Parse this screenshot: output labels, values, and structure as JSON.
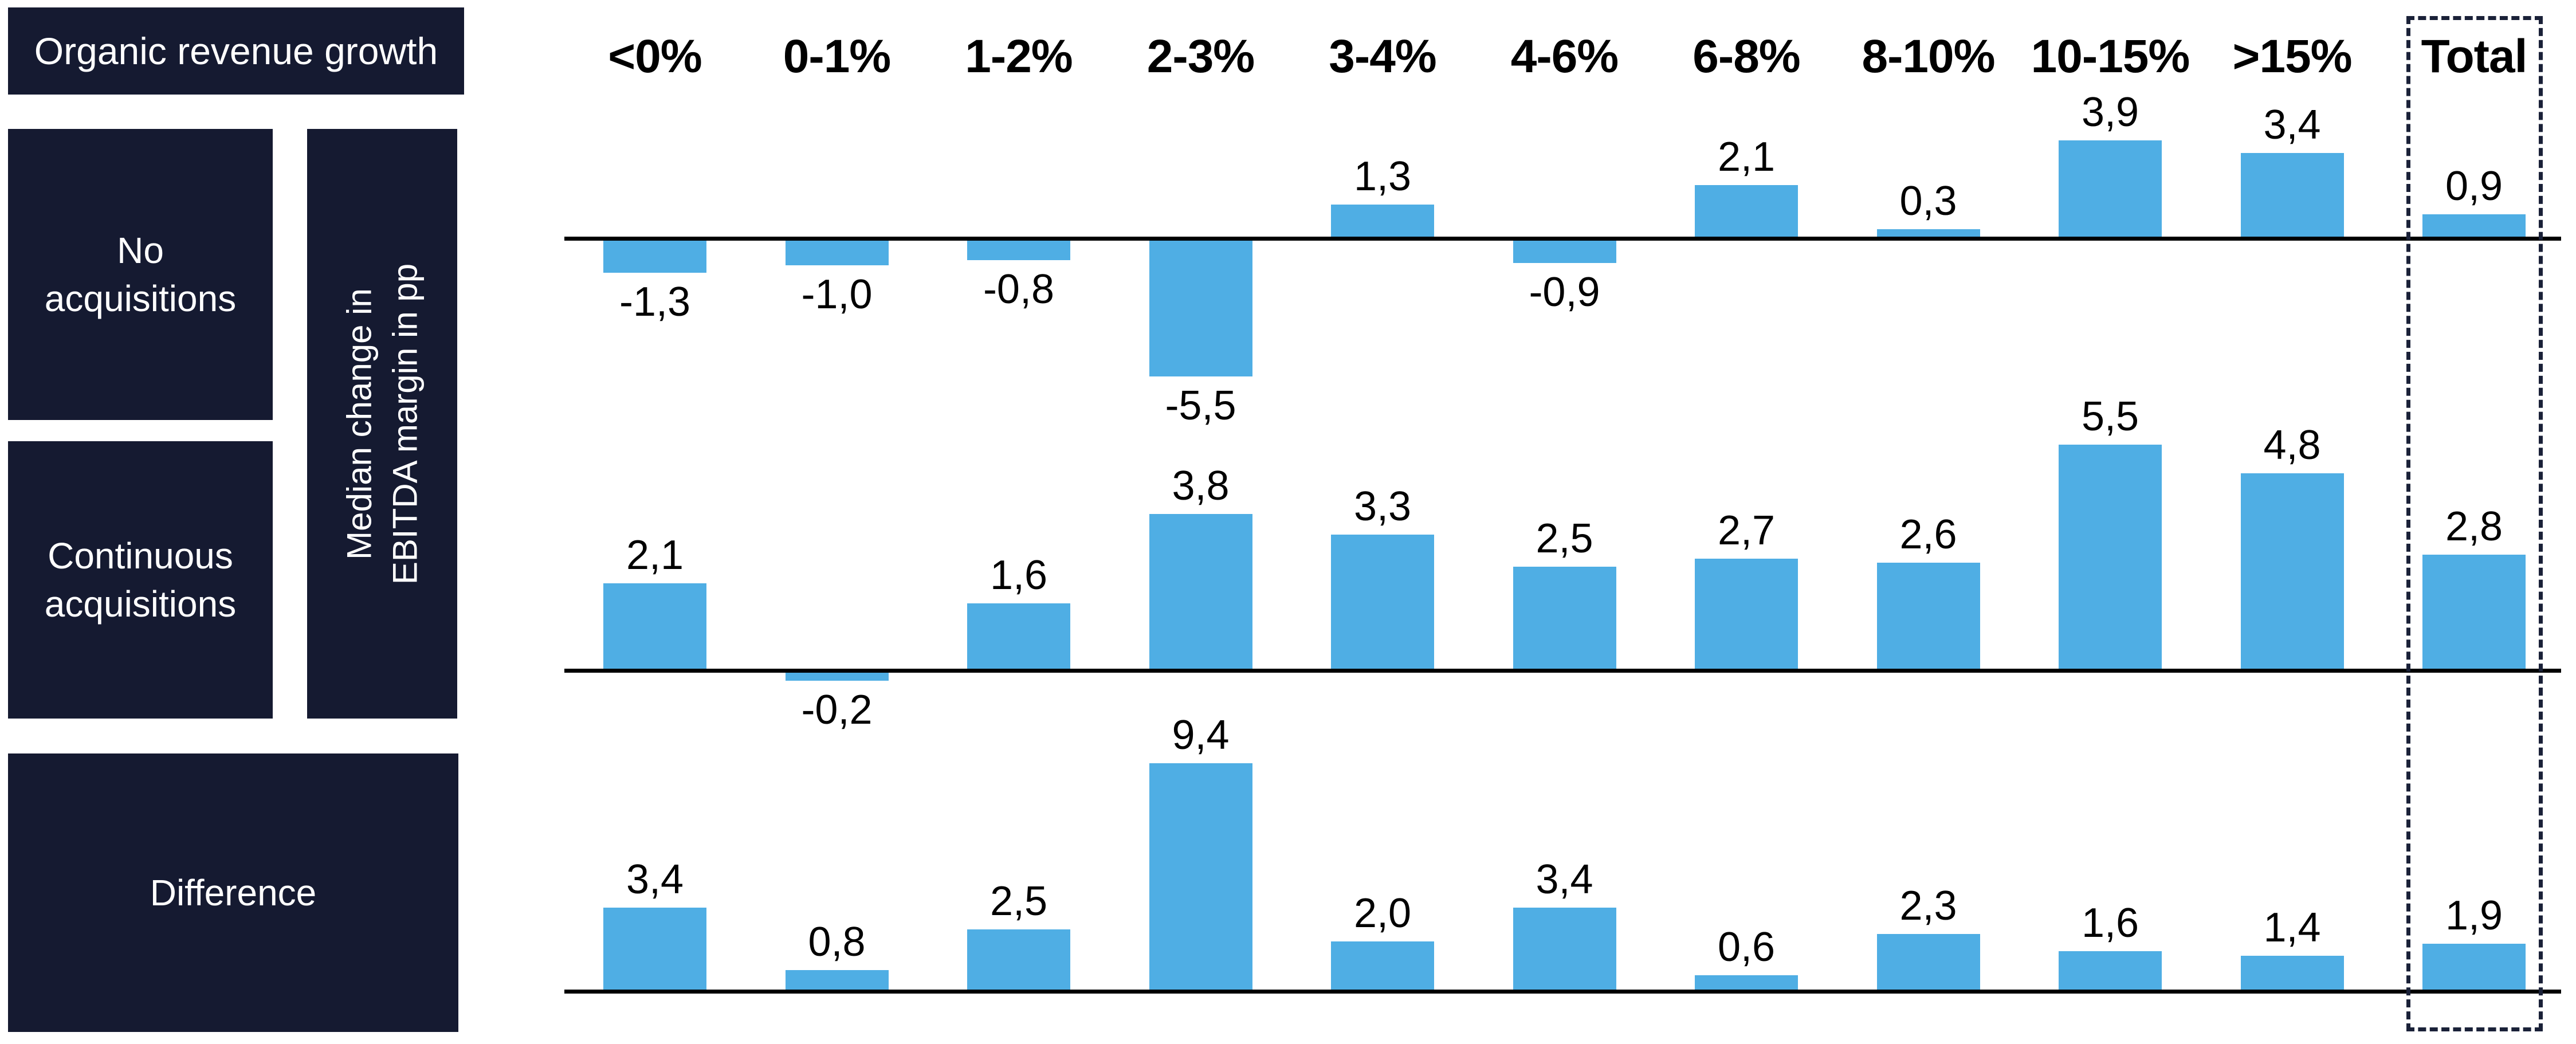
{
  "title_box": {
    "label": "Organic revenue growth"
  },
  "left_panel": {
    "row_boxes": [
      {
        "label": "No\nacquisitions"
      },
      {
        "label": "Continuous\nacquisitions"
      },
      {
        "label": "Difference"
      }
    ],
    "y_axis_label": "Median change in\nEBITDA margin in pp"
  },
  "colors": {
    "accent_blue": "#4FAEE4",
    "navy": "#151A31",
    "dash_navy": "#1A2138",
    "line_black": "#000000",
    "background": "#FFFFFF",
    "text_white": "#FFFFFF",
    "text_black": "#000000"
  },
  "chart_data": {
    "type": "bar",
    "categories": [
      "<0%",
      "0-1%",
      "1-2%",
      "2-3%",
      "3-4%",
      "4-6%",
      "6-8%",
      "8-10%",
      "10-15%",
      ">15%",
      "Total"
    ],
    "x_axis_title": "Organic revenue growth",
    "y_axis_title": "Median change in EBITDA margin in pp",
    "value_format": "comma-decimal-1dp",
    "highlighted_category": "Total",
    "legend_position": "none",
    "grid": false,
    "series": [
      {
        "name": "No acquisitions",
        "values": [
          -1.3,
          -1.0,
          -0.8,
          -5.5,
          1.3,
          -0.9,
          2.1,
          0.3,
          3.9,
          3.4,
          0.9
        ]
      },
      {
        "name": "Continuous acquisitions",
        "values": [
          2.1,
          -0.2,
          1.6,
          3.8,
          3.3,
          2.5,
          2.7,
          2.6,
          5.5,
          4.8,
          2.8
        ]
      },
      {
        "name": "Difference",
        "values": [
          3.4,
          0.8,
          2.5,
          9.4,
          2.0,
          3.4,
          0.6,
          2.3,
          1.6,
          1.4,
          1.9
        ]
      }
    ]
  }
}
